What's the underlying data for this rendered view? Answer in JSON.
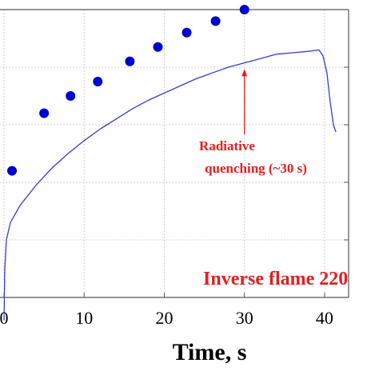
{
  "chart_data": {
    "type": "scatter",
    "xlabel": "Time, s",
    "ylabel": "",
    "xlim": [
      -1,
      43
    ],
    "ylim": [
      0,
      1
    ],
    "grid": true,
    "x_ticks": [
      0,
      10,
      20,
      30,
      40
    ],
    "x_tick_labels": [
      "0",
      "10",
      "20",
      "30",
      "40"
    ],
    "y_tick_values": [
      0.2,
      0.4,
      0.6,
      0.8,
      1.0
    ],
    "series": [
      {
        "kind": "markers",
        "color": "#0000cc",
        "points": [
          {
            "x": 1.0,
            "y": 0.44
          },
          {
            "x": 5.0,
            "y": 0.64
          },
          {
            "x": 8.3,
            "y": 0.7
          },
          {
            "x": 11.7,
            "y": 0.75
          },
          {
            "x": 15.7,
            "y": 0.82
          },
          {
            "x": 19.2,
            "y": 0.87
          },
          {
            "x": 22.8,
            "y": 0.92
          },
          {
            "x": 26.4,
            "y": 0.96
          },
          {
            "x": 30.0,
            "y": 1.0
          }
        ]
      },
      {
        "kind": "line",
        "color": "#3a3ad6",
        "points": [
          {
            "x": 0.0,
            "y": -0.08
          },
          {
            "x": 0.1,
            "y": 0.1
          },
          {
            "x": 0.3,
            "y": 0.2
          },
          {
            "x": 0.8,
            "y": 0.26
          },
          {
            "x": 2,
            "y": 0.32
          },
          {
            "x": 4,
            "y": 0.39
          },
          {
            "x": 6,
            "y": 0.45
          },
          {
            "x": 8,
            "y": 0.5
          },
          {
            "x": 10,
            "y": 0.545
          },
          {
            "x": 12,
            "y": 0.585
          },
          {
            "x": 14,
            "y": 0.62
          },
          {
            "x": 16,
            "y": 0.655
          },
          {
            "x": 18,
            "y": 0.685
          },
          {
            "x": 20,
            "y": 0.71
          },
          {
            "x": 22,
            "y": 0.735
          },
          {
            "x": 24,
            "y": 0.76
          },
          {
            "x": 26,
            "y": 0.78
          },
          {
            "x": 28,
            "y": 0.8
          },
          {
            "x": 30,
            "y": 0.815
          },
          {
            "x": 32,
            "y": 0.83
          },
          {
            "x": 34,
            "y": 0.845
          },
          {
            "x": 36,
            "y": 0.85
          },
          {
            "x": 38,
            "y": 0.855
          },
          {
            "x": 39.3,
            "y": 0.86
          },
          {
            "x": 39.8,
            "y": 0.84
          },
          {
            "x": 40.3,
            "y": 0.78
          },
          {
            "x": 40.7,
            "y": 0.68
          },
          {
            "x": 41.1,
            "y": 0.6
          },
          {
            "x": 41.4,
            "y": 0.575
          }
        ]
      }
    ],
    "annotations": [
      {
        "text": "Radiative",
        "color": "#e02020"
      },
      {
        "text": "quenching (~30 s)",
        "color": "#e02020",
        "arrow_to": {
          "x": 30,
          "y": 0.81
        }
      },
      {
        "text": "Inverse flame 220",
        "color": "#e02020"
      }
    ]
  }
}
